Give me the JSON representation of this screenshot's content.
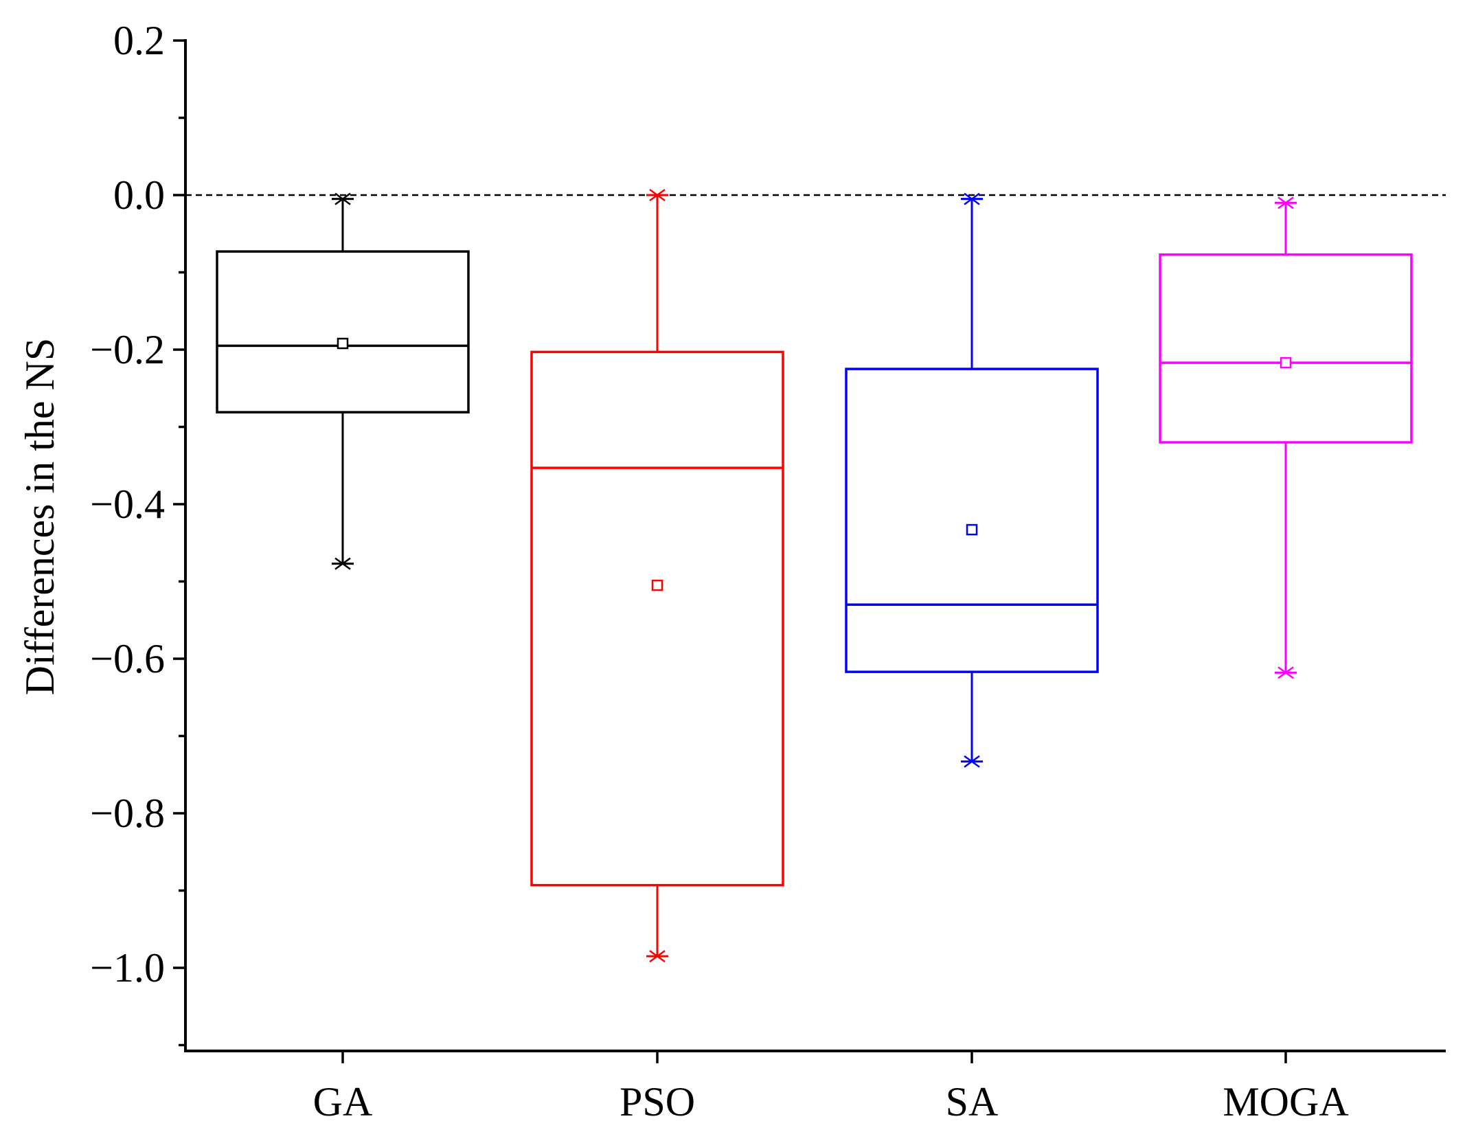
{
  "chart_data": {
    "type": "box",
    "title": "",
    "xlabel": "",
    "ylabel": "Differences in the NS",
    "ylim": [
      -1.1,
      0.2
    ],
    "yticks": [
      0.2,
      0.0,
      -0.2,
      -0.4,
      -0.6,
      -0.8,
      -1.0
    ],
    "ytick_labels": [
      "0.2",
      "0.0",
      "−0.2",
      "−0.4",
      "−0.6",
      "−0.8",
      "−1.0"
    ],
    "minor_ticks": [
      0.1,
      -0.1,
      -0.3,
      -0.5,
      -0.7,
      -0.9,
      -1.1
    ],
    "reference_line": 0.0,
    "categories": [
      "GA",
      "PSO",
      "SA",
      "MOGA"
    ],
    "series": [
      {
        "name": "GA",
        "color": "#000000",
        "whisker_max": -0.005,
        "q3": -0.073,
        "median": -0.195,
        "q1": -0.281,
        "whisker_min": -0.477,
        "mean": -0.192
      },
      {
        "name": "PSO",
        "color": "#ff0000",
        "whisker_max": 0.0,
        "q3": -0.203,
        "median": -0.353,
        "q1": -0.893,
        "whisker_min": -0.985,
        "mean": -0.505
      },
      {
        "name": "SA",
        "color": "#0000ff",
        "whisker_max": -0.005,
        "q3": -0.225,
        "median": -0.53,
        "q1": -0.617,
        "whisker_min": -0.733,
        "mean": -0.433
      },
      {
        "name": "MOGA",
        "color": "#ff00ff",
        "whisker_max": -0.01,
        "q3": -0.077,
        "median": -0.217,
        "q1": -0.32,
        "whisker_min": -0.618,
        "mean": -0.217
      }
    ]
  }
}
